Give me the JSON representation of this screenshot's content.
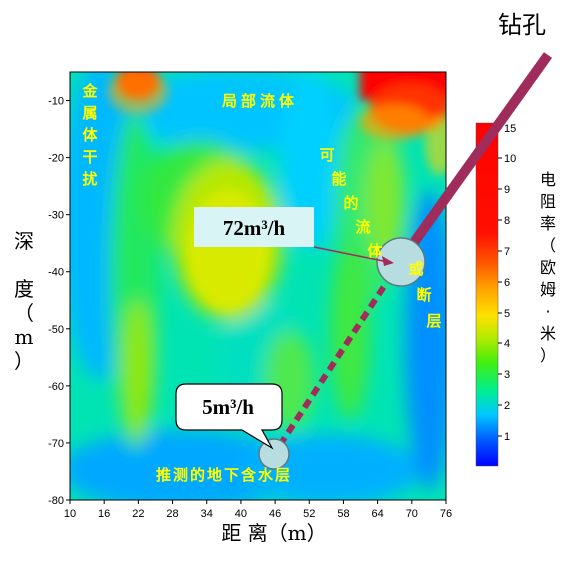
{
  "chart_data": {
    "type": "heatmap",
    "x": [
      10,
      16,
      22,
      28,
      34,
      40,
      46,
      52,
      58,
      64,
      70,
      76
    ],
    "y": [
      -10,
      -20,
      -30,
      -40,
      -50,
      -60,
      -70,
      -80
    ],
    "xlim": [
      10,
      76
    ],
    "ylim": [
      -80,
      -5
    ],
    "xlabel": "距 离（m）",
    "ylabel": "深 度（m）",
    "colorbar": {
      "label": "电阻率（欧姆·米）",
      "ticks": [
        1,
        2,
        3,
        4,
        5,
        6,
        7,
        8,
        9,
        10,
        15
      ],
      "range": [
        0,
        15
      ],
      "colors": [
        "#0000ff",
        "#0070ff",
        "#00d8ff",
        "#00ee70",
        "#66ee00",
        "#cce800",
        "#ffd800",
        "#ff9000",
        "#ff3000",
        "#ff0000"
      ]
    },
    "annotations": {
      "drill_label": "钻孔",
      "flow_rate_upper": "72m³/h",
      "flow_rate_lower": "5m³/h",
      "text_metal_interference": "金属体干扰",
      "text_local_flow": "局部流体",
      "text_possible_flow": "可能的流体",
      "text_or_fault": "或断层",
      "text_aquifer": "推测的地下含水层"
    },
    "borehole_points": [
      {
        "x": 68,
        "y": -38
      },
      {
        "x": 45,
        "y": -72
      }
    ]
  }
}
